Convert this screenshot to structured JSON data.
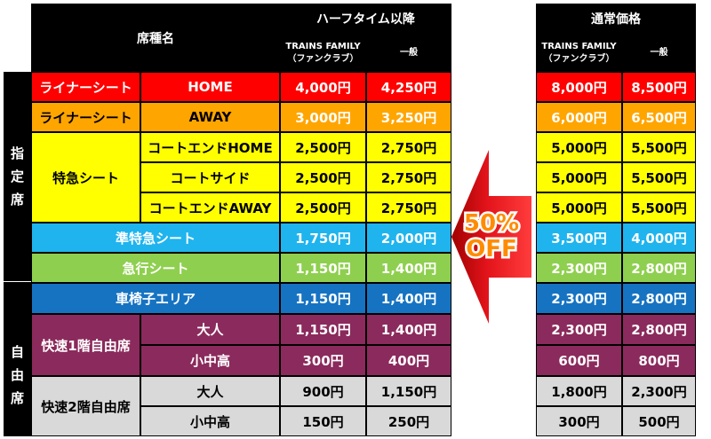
{
  "header": {
    "seat_name": "席種名",
    "half_time": "ハーフタイム以降",
    "regular": "通常価格",
    "fan_club_line1": "TRAINS FAMILY",
    "fan_club_line2": "（ファンクラブ）",
    "general": "一般"
  },
  "side_labels": {
    "reserved": [
      "指",
      "定",
      "席"
    ],
    "free": [
      "自",
      "由",
      "席"
    ]
  },
  "badge": {
    "line1": "50%",
    "line2": "OFF"
  },
  "rows": [
    {
      "cat": "ライナーシート",
      "sub": "HOME",
      "hf": "4,000円",
      "hg": "4,250円",
      "rf": "8,000円",
      "rg": "8,500円"
    },
    {
      "cat": "ライナーシート",
      "sub": "AWAY",
      "hf": "3,000円",
      "hg": "3,250円",
      "rf": "6,000円",
      "rg": "6,500円"
    },
    {
      "cat": "特急シート",
      "sub": "コートエンドHOME",
      "hf": "2,500円",
      "hg": "2,750円",
      "rf": "5,000円",
      "rg": "5,500円"
    },
    {
      "cat": "",
      "sub": "コートサイド",
      "hf": "2,500円",
      "hg": "2,750円",
      "rf": "5,000円",
      "rg": "5,500円"
    },
    {
      "cat": "",
      "sub": "コートエンドAWAY",
      "hf": "2,500円",
      "hg": "2,750円",
      "rf": "5,000円",
      "rg": "5,500円"
    },
    {
      "cat": "準特急シート",
      "sub": "",
      "hf": "1,750円",
      "hg": "2,000円",
      "rf": "3,500円",
      "rg": "4,000円"
    },
    {
      "cat": "急行シート",
      "sub": "",
      "hf": "1,150円",
      "hg": "1,400円",
      "rf": "2,300円",
      "rg": "2,800円"
    },
    {
      "cat": "車椅子エリア",
      "sub": "",
      "hf": "1,150円",
      "hg": "1,400円",
      "rf": "2,300円",
      "rg": "2,800円"
    },
    {
      "cat": "快速1階自由席",
      "sub": "大人",
      "hf": "1,150円",
      "hg": "1,400円",
      "rf": "2,300円",
      "rg": "2,800円"
    },
    {
      "cat": "",
      "sub": "小中高",
      "hf": "300円",
      "hg": "400円",
      "rf": "600円",
      "rg": "800円"
    },
    {
      "cat": "快速2階自由席",
      "sub": "大人",
      "hf": "900円",
      "hg": "1,150円",
      "rf": "1,800円",
      "rg": "2,300円"
    },
    {
      "cat": "",
      "sub": "小中高",
      "hf": "150円",
      "hg": "250円",
      "rf": "300円",
      "rg": "500円"
    }
  ],
  "colors": {
    "red": "#ff0000",
    "orange": "#ffa500",
    "yellow": "#ffff00",
    "sky": "#1fb4ee",
    "green": "#8fcf4f",
    "blue": "#1673c2",
    "purple": "#8b2a5c",
    "gray": "#d9d9d9",
    "black": "#000000",
    "arrow": "#e3141b",
    "badge_text": "#ff8c00"
  }
}
